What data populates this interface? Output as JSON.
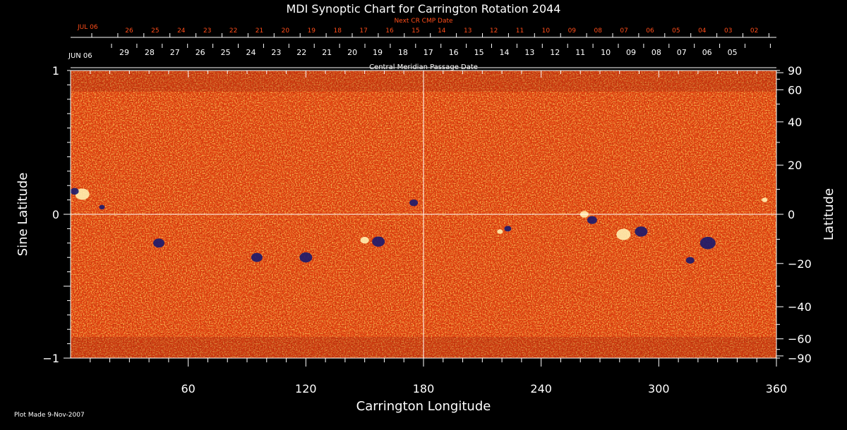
{
  "chart_data": {
    "type": "heatmap",
    "title": "MDI Synoptic Chart for Carrington Rotation 2044",
    "xlabel": "Carrington Longitude",
    "ylabel_left": "Sine Latitude",
    "ylabel_right": "Latitude",
    "xlim": [
      0,
      360
    ],
    "ylim": [
      -1,
      1
    ],
    "x_ticks": [
      60,
      120,
      180,
      240,
      300,
      360
    ],
    "y_ticks_left": [
      1,
      0,
      -1
    ],
    "y_tick_labels_left": [
      "1",
      "0",
      "−1"
    ],
    "y_ticks_right": [
      90,
      60,
      40,
      20,
      0,
      -20,
      -40,
      -60,
      -90
    ],
    "y_tick_labels_right": [
      "90",
      "60",
      "40",
      "20",
      "0",
      "−20",
      "−40",
      "−60",
      "−90"
    ],
    "top_axis_label": "Central Meridian Passage Date",
    "top_axis_start": "JUN 06",
    "top_axis_dates": [
      "29",
      "28",
      "27",
      "26",
      "25",
      "24",
      "23",
      "22",
      "21",
      "20",
      "19",
      "18",
      "17",
      "16",
      "15",
      "14",
      "13",
      "12",
      "11",
      "10",
      "09",
      "08",
      "07",
      "06",
      "05"
    ],
    "next_cr_label": "Next CR CMP Date",
    "next_cr_start": "JUL 06",
    "next_cr_dates": [
      "26",
      "25",
      "24",
      "23",
      "22",
      "21",
      "20",
      "19",
      "18",
      "17",
      "16",
      "15",
      "14",
      "13",
      "12",
      "11",
      "10",
      "09",
      "08",
      "07",
      "06",
      "05",
      "04",
      "03",
      "02"
    ],
    "grid_lines": {
      "longitude": 180,
      "sine_latitude": 0
    },
    "colors": {
      "background_field": "#e0400f",
      "positive": "#fff0b0",
      "negative": "#1a1a6e",
      "next_cr_text": "#ff4d1a"
    }
  },
  "footer": {
    "plot_made": "Plot Made  9-Nov-2007"
  }
}
